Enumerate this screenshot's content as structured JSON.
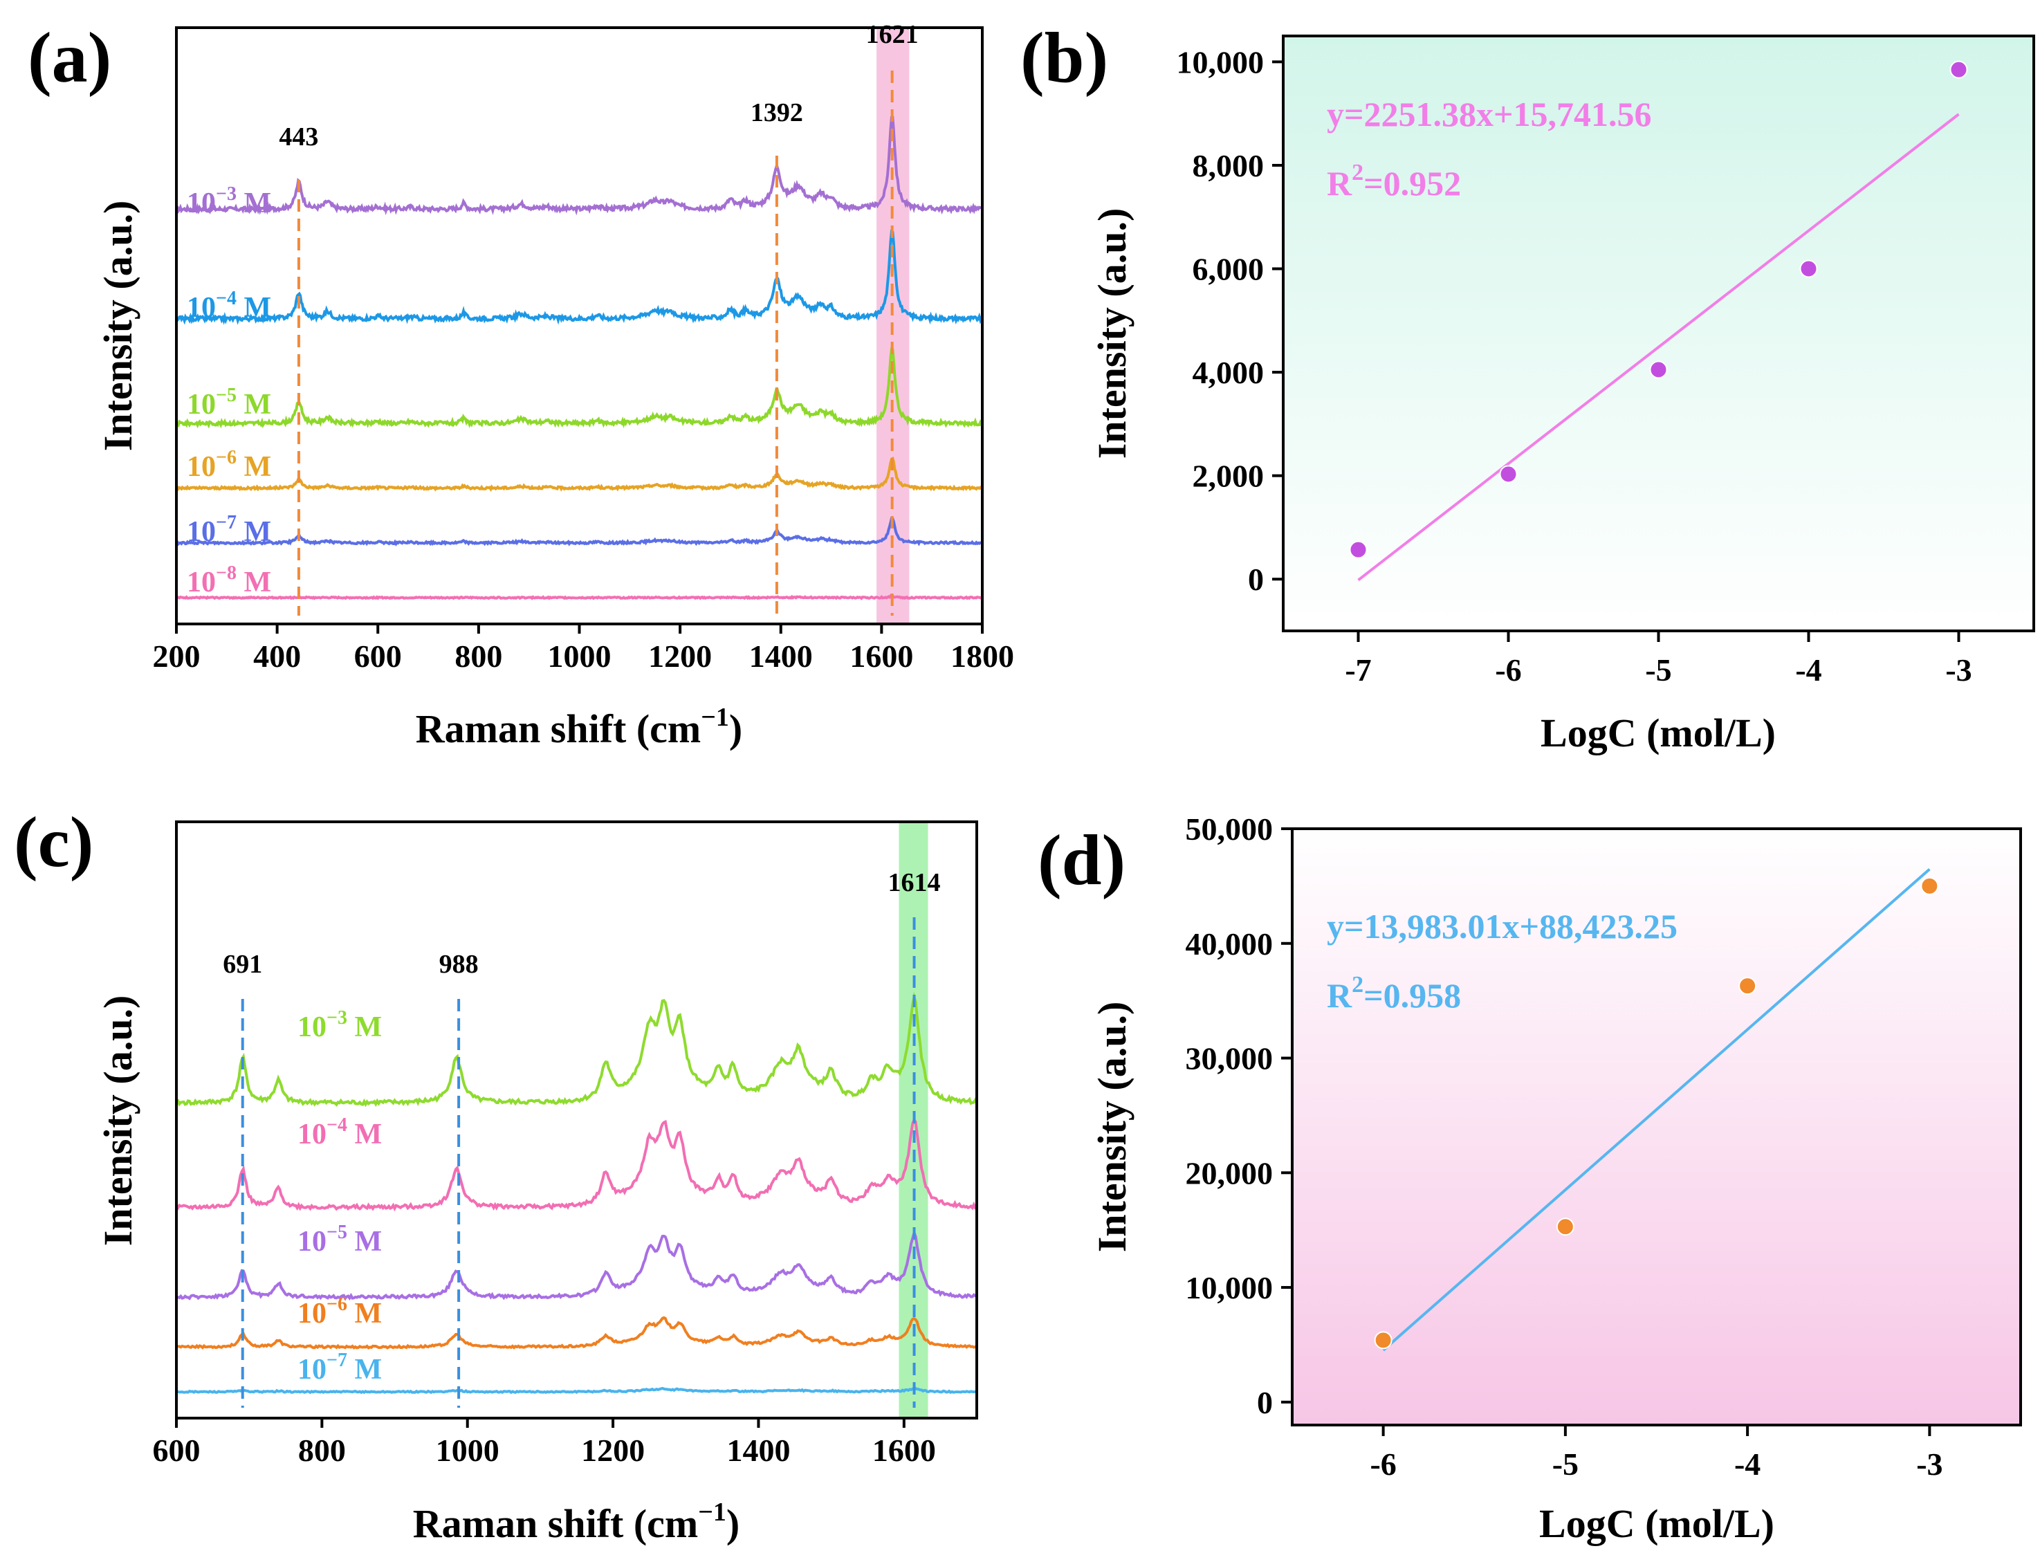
{
  "colors": {
    "orange_dash": "#f28a3a",
    "pink_band": "#f6b6d8",
    "green_band": "#9ff0a6",
    "fit_b": "#f27ee8",
    "fit_d": "#56b6f0",
    "point_b": "#c24ee0",
    "point_d": "#f08a2a"
  },
  "chart_data": [
    {
      "panel": "(a)",
      "type": "line",
      "xlabel": "Raman shift (cm",
      "xlabel_sup": "−1",
      "xlabel_close": ")",
      "ylabel": "Intensity (a.u.)",
      "xlim": [
        200,
        1800
      ],
      "xticks": [
        "200",
        "400",
        "600",
        "800",
        "1000",
        "1200",
        "1400",
        "1600",
        "1800"
      ],
      "peaks": [
        {
          "x": 443,
          "label": "443"
        },
        {
          "x": 1392,
          "label": "1392"
        },
        {
          "x": 1621,
          "label": "1621"
        }
      ],
      "highlight_band": [
        1590,
        1655
      ],
      "series": [
        {
          "base": "10",
          "exp": "−3",
          "unit": " M",
          "color": "#a46fd2",
          "offset": 7.8,
          "scale": 1.0
        },
        {
          "base": "10",
          "exp": "−4",
          "unit": " M",
          "color": "#1c98e6",
          "offset": 5.6,
          "scale": 0.95
        },
        {
          "base": "10",
          "exp": "−5",
          "unit": " M",
          "color": "#8dd82a",
          "offset": 3.5,
          "scale": 0.8
        },
        {
          "base": "10",
          "exp": "−6",
          "unit": " M",
          "color": "#e6a324",
          "offset": 2.2,
          "scale": 0.32
        },
        {
          "base": "10",
          "exp": "−7",
          "unit": " M",
          "color": "#5a6ee6",
          "offset": 1.1,
          "scale": 0.26
        },
        {
          "base": "10",
          "exp": "−8",
          "unit": " M",
          "color": "#f36fb3",
          "offset": 0.0,
          "scale": 0.015
        }
      ]
    },
    {
      "panel": "(b)",
      "type": "scatter",
      "xlabel": "LogC (mol/L)",
      "ylabel": "Intensity (a.u.)",
      "xlim": [
        -7.5,
        -2.5
      ],
      "ylim": [
        -1000,
        10500
      ],
      "xticks": [
        "-7",
        "-6",
        "-5",
        "-4",
        "-3"
      ],
      "yticks": [
        "0",
        "2,000",
        "4,000",
        "6,000",
        "8,000",
        "10,000"
      ],
      "points": {
        "x": [
          -7,
          -6,
          -5,
          -4,
          -3
        ],
        "y": [
          570,
          2030,
          4050,
          6000,
          9850
        ]
      },
      "fit": {
        "slope": 2251.38,
        "intercept": 15741.56,
        "x_range": [
          -7,
          -3
        ]
      },
      "equation": "y=2251.38x+15,741.56",
      "r2_label": "R",
      "r2_sup": "2",
      "r2_value": "=0.952",
      "background": [
        "#d2f5ea",
        "#ffffff"
      ]
    },
    {
      "panel": "(c)",
      "type": "line",
      "xlabel": "Raman shift (cm",
      "xlabel_sup": "−1",
      "xlabel_close": ")",
      "ylabel": "Intensity (a.u.)",
      "xlim": [
        600,
        1700
      ],
      "xticks": [
        "600",
        "800",
        "1000",
        "1200",
        "1400",
        "1600"
      ],
      "peaks": [
        {
          "x": 691,
          "label": "691"
        },
        {
          "x": 988,
          "label": "988"
        },
        {
          "x": 1614,
          "label": "1614"
        }
      ],
      "highlight_band": [
        1593,
        1633
      ],
      "series": [
        {
          "base": "10",
          "exp": "−3",
          "unit": " M",
          "color": "#8edb2e",
          "offset": 5.8,
          "scale": 1.0
        },
        {
          "base": "10",
          "exp": "−4",
          "unit": " M",
          "color": "#f26eb3",
          "offset": 3.7,
          "scale": 0.85
        },
        {
          "base": "10",
          "exp": "−5",
          "unit": " M",
          "color": "#a86fe4",
          "offset": 1.9,
          "scale": 0.6
        },
        {
          "base": "10",
          "exp": "−6",
          "unit": " M",
          "color": "#f07f1f",
          "offset": 0.9,
          "scale": 0.28
        },
        {
          "base": "10",
          "exp": "−7",
          "unit": " M",
          "color": "#49b3ec",
          "offset": 0.0,
          "scale": 0.03
        }
      ]
    },
    {
      "panel": "(d)",
      "type": "scatter",
      "xlabel": "LogC (mol/L)",
      "ylabel": "Intensity (a.u.)",
      "xlim": [
        -6.5,
        -2.5
      ],
      "ylim": [
        -2000,
        50000
      ],
      "xticks": [
        "-6",
        "-5",
        "-4",
        "-3"
      ],
      "yticks": [
        "0",
        "10,000",
        "20,000",
        "30,000",
        "40,000",
        "50,000"
      ],
      "points": {
        "x": [
          -6,
          -5,
          -4,
          -3
        ],
        "y": [
          5400,
          15300,
          36300,
          45000
        ]
      },
      "fit": {
        "slope": 13983.01,
        "intercept": 88423.25,
        "x_range": [
          -6,
          -3
        ]
      },
      "equation": "y=13,983.01x+88,423.25",
      "r2_label": "R",
      "r2_sup": "2",
      "r2_value": "=0.958",
      "background": [
        "#ffffff",
        "#f7c6e6"
      ]
    }
  ]
}
